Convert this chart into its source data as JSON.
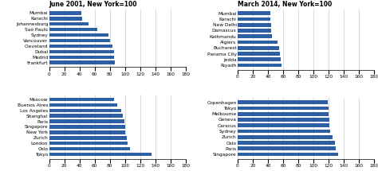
{
  "chart1_title": "June 2001, New York=100",
  "chart1_top": {
    "cities": [
      "Mumbai",
      "Karachi",
      "Johannesburg",
      "Sao Paulo",
      "Sydney",
      "Vancouver",
      "Cleveland",
      "Dubai",
      "Madrid",
      "Frankfurt"
    ],
    "values": [
      42,
      43,
      52,
      63,
      78,
      80,
      83,
      85,
      86,
      87
    ]
  },
  "chart1_bottom": {
    "cities": [
      "Moscow",
      "Buenos Aires",
      "Los Angeles",
      "Shanghai",
      "Paris",
      "Singapore",
      "New York",
      "Zurich",
      "London",
      "Oslo",
      "Tokyo"
    ],
    "values": [
      86,
      90,
      95,
      97,
      99,
      100,
      100,
      102,
      103,
      107,
      135
    ]
  },
  "chart2_title": "March 2014, New York=100",
  "chart2_top": {
    "cities": [
      "Mumbai",
      "Karachi",
      "New Delhi",
      "Damascus",
      "Kathmandu",
      "Algiers",
      "Bucharest",
      "Panama City",
      "Jedda",
      "Riyadh"
    ],
    "values": [
      43,
      43,
      44,
      44,
      45,
      53,
      55,
      56,
      57,
      58
    ]
  },
  "chart2_bottom": {
    "cities": [
      "Copenhagen",
      "Tokyo",
      "Melbourne",
      "Geneva",
      "Caracus",
      "Sydney",
      "Zurich",
      "Oslo",
      "Paris",
      "Singapore"
    ],
    "values": [
      119,
      120,
      120,
      121,
      121,
      122,
      125,
      128,
      129,
      132
    ]
  },
  "bar_color": "#2E5FA3",
  "xlim": [
    0,
    180
  ],
  "xticks": [
    0,
    20,
    40,
    60,
    80,
    100,
    120,
    140,
    160,
    180
  ],
  "bg_color": "#FFFFFF",
  "title_fontsize": 5.5,
  "label_fontsize": 4.2,
  "tick_fontsize": 4.2
}
